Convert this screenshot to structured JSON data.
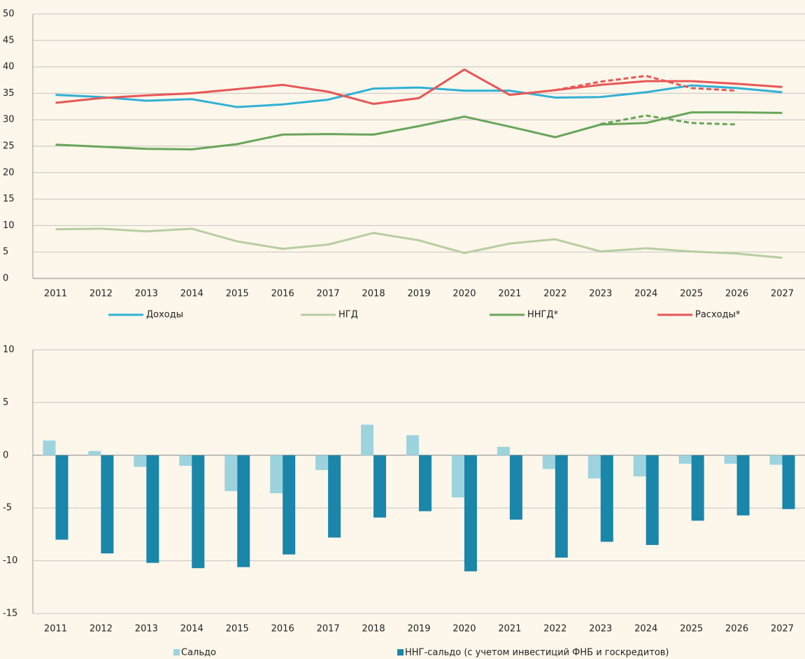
{
  "chart_data": [
    {
      "type": "line",
      "categories": [
        "2011",
        "2012",
        "2013",
        "2014",
        "2015",
        "2016",
        "2017",
        "2018",
        "2019",
        "2020",
        "2021",
        "2022",
        "2023",
        "2024",
        "2025",
        "2026",
        "2027"
      ],
      "ylim": [
        0,
        50
      ],
      "yticks": [
        0,
        5,
        10,
        15,
        20,
        25,
        30,
        35,
        40,
        45,
        50
      ],
      "grid": true,
      "series": [
        {
          "name": "Доходы",
          "color": "#2fb0d5",
          "values": [
            34.7,
            34.3,
            33.6,
            33.9,
            32.4,
            32.9,
            33.8,
            35.9,
            36.1,
            35.5,
            35.5,
            34.2,
            34.3,
            35.2,
            36.5,
            36.0,
            35.2
          ]
        },
        {
          "name": "НГД",
          "color": "#b7cda3",
          "values": [
            9.3,
            9.4,
            8.9,
            9.4,
            7.0,
            5.6,
            6.4,
            8.6,
            7.2,
            4.8,
            6.6,
            7.4,
            5.1,
            5.7,
            5.1,
            4.7,
            3.9
          ]
        },
        {
          "name": "ННГД*",
          "color": "#68a55a",
          "values": [
            25.3,
            24.9,
            24.5,
            24.4,
            25.4,
            27.2,
            27.3,
            27.2,
            28.8,
            30.6,
            28.7,
            26.7,
            29.1,
            29.4,
            31.4,
            31.4,
            31.3
          ]
        },
        {
          "name": "Расходы*",
          "color": "#e85656",
          "values": [
            33.2,
            34.1,
            34.6,
            35.0,
            35.8,
            36.6,
            35.3,
            33.0,
            34.1,
            39.5,
            34.7,
            35.6,
            36.6,
            37.3,
            37.3,
            36.8,
            36.2
          ]
        },
        {
          "color": "#e85656",
          "dash": true,
          "values": [
            null,
            null,
            null,
            null,
            null,
            null,
            null,
            null,
            null,
            null,
            null,
            35.6,
            37.2,
            38.3,
            36.0,
            35.5,
            null
          ]
        },
        {
          "color": "#68a55a",
          "dash": true,
          "values": [
            null,
            null,
            null,
            null,
            null,
            null,
            null,
            null,
            null,
            null,
            null,
            null,
            29.2,
            30.8,
            29.4,
            29.1,
            null
          ]
        }
      ]
    },
    {
      "type": "bar",
      "categories": [
        "2011",
        "2012",
        "2013",
        "2014",
        "2015",
        "2016",
        "2017",
        "2018",
        "2019",
        "2020",
        "2021",
        "2022",
        "2023",
        "2024",
        "2025",
        "2026",
        "2027"
      ],
      "ylim": [
        -15,
        10
      ],
      "yticks": [
        -15,
        -10,
        -5,
        0,
        5,
        10
      ],
      "grid": true,
      "series": [
        {
          "name": "Сальдо",
          "color": "#9dd3df",
          "values": [
            1.4,
            0.4,
            -1.1,
            -1.0,
            -3.4,
            -3.6,
            -1.4,
            2.9,
            1.9,
            -4.0,
            0.8,
            -1.3,
            -2.2,
            -2.0,
            -0.8,
            -0.8,
            -0.9
          ]
        },
        {
          "name": "ННГ-сальдо (с учетом инвестиций ФНБ и госкредитов)",
          "color": "#1a86a9",
          "values": [
            -8.0,
            -9.3,
            -10.2,
            -10.7,
            -10.6,
            -9.4,
            -7.8,
            -5.9,
            -5.3,
            -11.0,
            -6.1,
            -9.7,
            -8.2,
            -8.5,
            -6.2,
            -5.7,
            -5.1
          ]
        }
      ]
    }
  ]
}
